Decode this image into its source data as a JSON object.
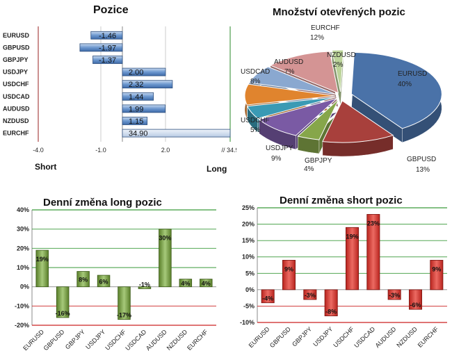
{
  "colors": {
    "pos_bar": "#5b8fcf",
    "neg_bar": "#5b8fcf",
    "long_green": "#7fa84a",
    "short_red": "#d9403a",
    "grid_green": "#3a9a3a",
    "grid_red": "#cc2222"
  },
  "chart_data": [
    {
      "type": "bar",
      "orientation": "horizontal",
      "title": "Pozice",
      "categories": [
        "EURUSD",
        "GBPUSD",
        "GBPJPY",
        "USDJPY",
        "USDCHF",
        "USDCAD",
        "AUDUSD",
        "NZDUSD",
        "EURCHF"
      ],
      "values": [
        -1.46,
        -1.97,
        -1.37,
        2.0,
        2.32,
        1.44,
        1.99,
        1.15,
        34.9
      ],
      "value_labels": [
        "-1.46",
        "-1.97",
        "-1.37",
        "2.00",
        "2.32",
        "1.44",
        "1.99",
        "1.15",
        "34.90"
      ],
      "xticks": [
        "-4.0",
        "-1.0",
        "2.0",
        "// 34.9"
      ],
      "xlabel_left": "Short",
      "xlabel_right": "Long"
    },
    {
      "type": "pie",
      "title": "Množství otevřených pozic",
      "slices": [
        {
          "name": "EURUSD",
          "value": 40,
          "label": "40%",
          "color": "#4a72a8"
        },
        {
          "name": "GBPUSD",
          "value": 13,
          "label": "13%",
          "color": "#a8403c"
        },
        {
          "name": "GBPJPY",
          "value": 4,
          "label": "4%",
          "color": "#86a64a"
        },
        {
          "name": "USDJPY",
          "value": 9,
          "label": "9%",
          "color": "#7a5aa4"
        },
        {
          "name": "USDCHF",
          "value": 5,
          "label": "5%",
          "color": "#3a9ab4"
        },
        {
          "name": "USDCAD",
          "value": 8,
          "label": "8%",
          "color": "#e0842e"
        },
        {
          "name": "AUDUSD",
          "value": 7,
          "label": "7%",
          "color": "#8aa8d0"
        },
        {
          "name": "EURCHF",
          "value": 12,
          "label": "12%",
          "color": "#d49494"
        },
        {
          "name": "NZDUSD",
          "value": 2,
          "label": "2%",
          "color": "#bcd49a"
        }
      ]
    },
    {
      "type": "bar",
      "title": "Denní změna long pozic",
      "categories": [
        "EURUSD",
        "GBPUSD",
        "GBPJPY",
        "USDJPY",
        "USDCHF",
        "USDCAD",
        "AUDUSD",
        "NZDUSD",
        "EURCHF"
      ],
      "values": [
        19,
        -16,
        8,
        6,
        -17,
        -1,
        30,
        4,
        4
      ],
      "value_labels": [
        "19%",
        "-16%",
        "8%",
        "6%",
        "-17%",
        "-1%",
        "30%",
        "4%",
        "4%"
      ],
      "yticks": [
        "40%",
        "30%",
        "20%",
        "10%",
        "0%",
        "-10%",
        "-20%"
      ],
      "ylim": [
        -20,
        40
      ]
    },
    {
      "type": "bar",
      "title": "Denní změna short pozic",
      "categories": [
        "EURUSD",
        "GBPUSD",
        "GBPJPY",
        "USDJPY",
        "USDCHF",
        "USDCAD",
        "AUDUSD",
        "NZDUSD",
        "EURCHF"
      ],
      "values": [
        -4,
        9,
        -3,
        -8,
        19,
        23,
        -3,
        -6,
        9
      ],
      "value_labels": [
        "-4%",
        "9%",
        "-3%",
        "-8%",
        "19%",
        "23%",
        "-3%",
        "-6%",
        "9%"
      ],
      "yticks": [
        "25%",
        "20%",
        "15%",
        "10%",
        "5%",
        "0%",
        "-5%",
        "-10%"
      ],
      "ylim": [
        -10,
        25
      ]
    }
  ]
}
